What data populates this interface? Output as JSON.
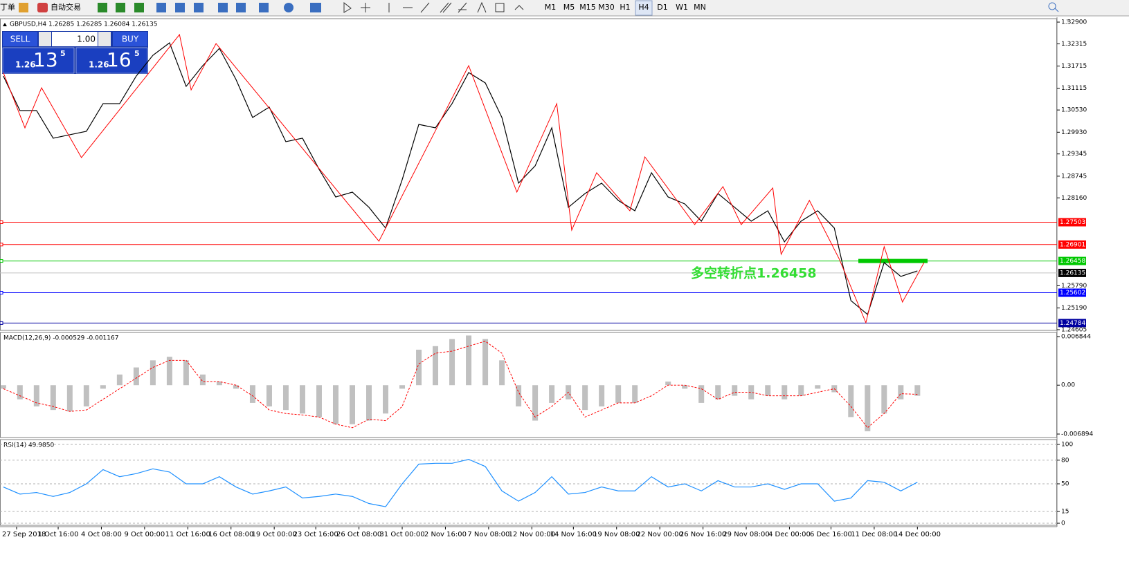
{
  "toolbar": {
    "menu": "丁单",
    "auto_trade": "自动交易",
    "timeframes": [
      "M1",
      "M5",
      "M15",
      "M30",
      "H1",
      "H4",
      "D1",
      "W1",
      "MN"
    ],
    "active": "H4"
  },
  "trade_panel": {
    "sell": "SELL",
    "buy": "BUY",
    "lots": "1.00",
    "bid_big": "1.26",
    "bid_main": "13",
    "bid_small": "5",
    "ask_big": "1.26",
    "ask_main": "16",
    "ask_small": "5"
  },
  "chart_data": [
    {
      "type": "line",
      "title": "GBPUSD,H4  1.26285 1.26285 1.26084 1.26135",
      "color": "#000000",
      "values": [
        1.31446,
        1.30514,
        1.30514,
        1.29769,
        1.29862,
        1.29955,
        1.30701,
        1.30701,
        1.31446,
        1.32005,
        1.32341,
        1.31167,
        1.31726,
        1.32192,
        1.31353,
        1.30328,
        1.30607,
        1.29675,
        1.29769,
        1.2893,
        1.28184,
        1.28315,
        1.27905,
        1.27346,
        1.2865,
        1.30141,
        1.30048,
        1.30701,
        1.31539,
        1.3126,
        1.30328,
        1.28557,
        1.29023,
        1.30048,
        1.27905,
        1.28277,
        1.28557,
        1.28091,
        1.27812,
        1.28837,
        1.28184,
        1.27998,
        1.27532,
        1.28277,
        1.27905,
        1.27532,
        1.27812,
        1.26973,
        1.27532,
        1.27812,
        1.27346,
        1.25388,
        1.25016,
        1.26414,
        1.26041,
        1.2619
      ],
      "zigzag": {
        "color": "#ff0000",
        "x": [
          0,
          1.3,
          2.3,
          4.7,
          10.6,
          11.3,
          12.8,
          22.6,
          28,
          30.9,
          33.3,
          34.2,
          35.7,
          37.7,
          38.6,
          41.6,
          43.3,
          44.4,
          46.3,
          46.8,
          48.5,
          50.3,
          51.9,
          53,
          54.1,
          55.4
        ],
        "values": [
          1.31539,
          1.30048,
          1.31129,
          1.29247,
          1.32564,
          1.31073,
          1.32322,
          1.26991,
          1.31726,
          1.28315,
          1.30701,
          1.2729,
          1.28837,
          1.27812,
          1.29265,
          1.27439,
          1.28464,
          1.27439,
          1.28427,
          1.26637,
          1.28091,
          1.26507,
          1.24792,
          1.26842,
          1.25351,
          1.26414
        ]
      },
      "levels": [
        {
          "value": 1.27503,
          "color": "#ff0000"
        },
        {
          "value": 1.26901,
          "color": "#ff0000"
        },
        {
          "value": 1.26458,
          "color": "#00c800"
        },
        {
          "value": 1.25602,
          "color": "#0000ff"
        },
        {
          "value": 1.24784,
          "color": "#0000a0"
        }
      ],
      "current_price": 1.26135,
      "annotation": "多空转折点1.26458",
      "xlim": [
        -0.2,
        63.4
      ],
      "ylim": [
        1.24586,
        1.32993
      ],
      "yticks": [
        {
          "value": 1.329,
          "label": "1.32900"
        },
        {
          "value": 1.32315,
          "label": "1.32315"
        },
        {
          "value": 1.31715,
          "label": "1.31715"
        },
        {
          "value": 1.31115,
          "label": "1.31115"
        },
        {
          "value": 1.3053,
          "label": "1.30530"
        },
        {
          "value": 1.2993,
          "label": "1.29930"
        },
        {
          "value": 1.29345,
          "label": "1.29345"
        },
        {
          "value": 1.28745,
          "label": "1.28745"
        },
        {
          "value": 1.2816,
          "label": "1.28160"
        },
        {
          "value": 1.2579,
          "label": "1.25790"
        },
        {
          "value": 1.2519,
          "label": "1.25190"
        },
        {
          "value": 1.24605,
          "label": "1.24605"
        }
      ]
    },
    {
      "type": "bar",
      "title": "MACD(12,26,9) -0.000529 -0.001167",
      "color": "#c0c0c0",
      "values": [
        -0.0005,
        -0.002,
        -0.003,
        -0.0035,
        -0.0037,
        -0.003,
        -0.0005,
        0.0015,
        0.0025,
        0.0035,
        0.004,
        0.0035,
        0.0015,
        0.0005,
        -0.0005,
        -0.0025,
        -0.003,
        -0.0035,
        -0.004,
        -0.0045,
        -0.0055,
        -0.0055,
        -0.005,
        -0.004,
        -0.0005,
        0.005,
        0.0055,
        0.0065,
        0.007,
        0.0065,
        0.0035,
        -0.003,
        -0.005,
        -0.0025,
        -0.002,
        -0.0035,
        -0.003,
        -0.0025,
        -0.0025,
        0,
        0.0005,
        -0.0005,
        -0.0025,
        -0.002,
        -0.0015,
        -0.002,
        -0.0015,
        -0.002,
        -0.0015,
        -0.0005,
        -0.001,
        -0.0045,
        -0.0065,
        -0.004,
        -0.002,
        -0.0015
      ],
      "signal": {
        "color": "#ff0000",
        "values": [
          -0.0005,
          -0.0015,
          -0.0025,
          -0.003,
          -0.0037,
          -0.0035,
          -0.002,
          -0.0005,
          0.001,
          0.0025,
          0.0035,
          0.0035,
          0.0005,
          0.0005,
          0,
          -0.0015,
          -0.0035,
          -0.004,
          -0.0042,
          -0.0045,
          -0.0055,
          -0.006,
          -0.0048,
          -0.005,
          -0.003,
          0.003,
          0.0045,
          0.0048,
          0.0055,
          0.0062,
          0.0045,
          -0.001,
          -0.0045,
          -0.003,
          -0.001,
          -0.0045,
          -0.0035,
          -0.0025,
          -0.0025,
          -0.0015,
          0,
          0,
          -0.0005,
          -0.002,
          -0.001,
          -0.001,
          -0.0015,
          -0.0015,
          -0.0015,
          -0.001,
          -0.0005,
          -0.003,
          -0.006,
          -0.004,
          -0.0012,
          -0.0013
        ]
      },
      "xlim": [
        -0.2,
        63.4
      ],
      "ylim": [
        -0.007381,
        0.007429
      ],
      "yticks": [
        0.006844,
        {
          "value": 0,
          "label": "0.00"
        },
        -0.006894
      ]
    },
    {
      "type": "line",
      "title": "RSI(14) 49.9850",
      "color": "#1e90ff",
      "grid": true,
      "values": [
        46,
        37,
        39,
        34,
        39,
        50,
        68,
        59,
        63,
        69,
        65,
        50,
        50,
        59,
        46,
        37,
        41,
        46,
        32,
        34,
        37,
        34,
        25,
        21,
        50,
        75,
        76,
        76,
        81,
        72,
        41,
        28,
        39,
        59,
        37,
        39,
        46,
        41,
        41,
        59,
        46,
        50,
        41,
        54,
        46,
        46,
        50,
        43,
        50,
        50,
        28,
        32,
        54,
        52,
        41,
        52
      ],
      "xlim": [
        -0.2,
        63.4
      ],
      "ylim": [
        -2.6,
        106.1
      ],
      "yticks": [
        100,
        80,
        50,
        15,
        0
      ],
      "xticks": [
        {
          "value": 0.8,
          "label": "27 Sep 2018"
        },
        {
          "value": 3.3,
          "label": "1 Oct 16:00"
        },
        {
          "value": 5.9,
          "label": "4 Oct 08:00"
        },
        {
          "value": 8.5,
          "label": "9 Oct 00:00"
        },
        {
          "value": 11.1,
          "label": "11 Oct 16:00"
        },
        {
          "value": 13.7,
          "label": "16 Oct 08:00"
        },
        {
          "value": 16.3,
          "label": "19 Oct 00:00"
        },
        {
          "value": 18.8,
          "label": "23 Oct 16:00"
        },
        {
          "value": 21.4,
          "label": "26 Oct 08:00"
        },
        {
          "value": 24,
          "label": "31 Oct 00:00"
        },
        {
          "value": 26.6,
          "label": "2 Nov 16:00"
        },
        {
          "value": 29.2,
          "label": "7 Nov 08:00"
        },
        {
          "value": 31.8,
          "label": "12 Nov 00:00"
        },
        {
          "value": 34.3,
          "label": "14 Nov 16:00"
        },
        {
          "value": 36.9,
          "label": "19 Nov 08:00"
        },
        {
          "value": 39.5,
          "label": "22 Nov 00:00"
        },
        {
          "value": 42.1,
          "label": "26 Nov 16:00"
        },
        {
          "value": 44.7,
          "label": "29 Nov 08:00"
        },
        {
          "value": 47.3,
          "label": "4 Dec 00:00"
        },
        {
          "value": 49.8,
          "label": "6 Dec 16:00"
        },
        {
          "value": 52.4,
          "label": "11 Dec 08:00"
        },
        {
          "value": 55,
          "label": "14 Dec 00:00"
        }
      ]
    }
  ]
}
